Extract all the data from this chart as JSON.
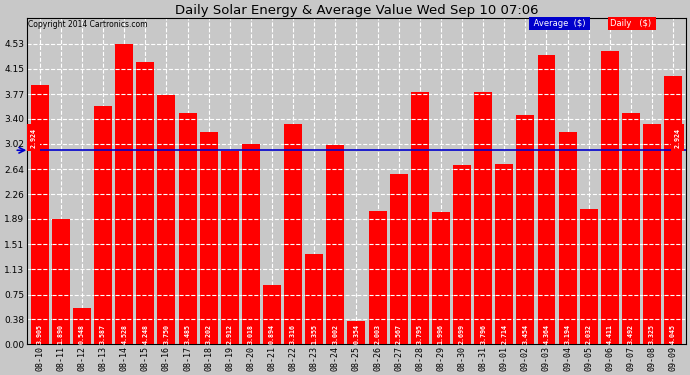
{
  "title": "Daily Solar Energy & Average Value Wed Sep 10 07:06",
  "copyright": "Copyright 2014 Cartronics.com",
  "average_value": 2.924,
  "bar_color": "#ff0000",
  "average_line_color": "#0000cc",
  "background_color": "#c8c8c8",
  "plot_bg_color": "#c8c8c8",
  "grid_color": "#ffffff",
  "categories": [
    "08-10",
    "08-11",
    "08-12",
    "08-13",
    "08-14",
    "08-15",
    "08-16",
    "08-17",
    "08-18",
    "08-19",
    "08-20",
    "08-21",
    "08-22",
    "08-23",
    "08-24",
    "08-25",
    "08-26",
    "08-27",
    "08-28",
    "08-29",
    "08-30",
    "08-31",
    "09-01",
    "09-02",
    "09-03",
    "09-04",
    "09-05",
    "09-06",
    "09-07",
    "09-08",
    "09-09"
  ],
  "values": [
    3.905,
    1.89,
    0.548,
    3.587,
    4.528,
    4.248,
    3.75,
    3.485,
    3.202,
    2.912,
    3.018,
    0.894,
    3.316,
    1.355,
    3.002,
    0.354,
    2.003,
    2.567,
    3.795,
    1.996,
    2.699,
    3.796,
    2.714,
    3.454,
    4.364,
    3.194,
    2.032,
    4.411,
    3.492,
    3.325,
    4.045
  ],
  "ylim": [
    0.0,
    4.91
  ],
  "yticks": [
    0.0,
    0.38,
    0.75,
    1.13,
    1.51,
    1.89,
    2.26,
    2.64,
    3.02,
    3.4,
    3.77,
    4.15,
    4.53
  ]
}
